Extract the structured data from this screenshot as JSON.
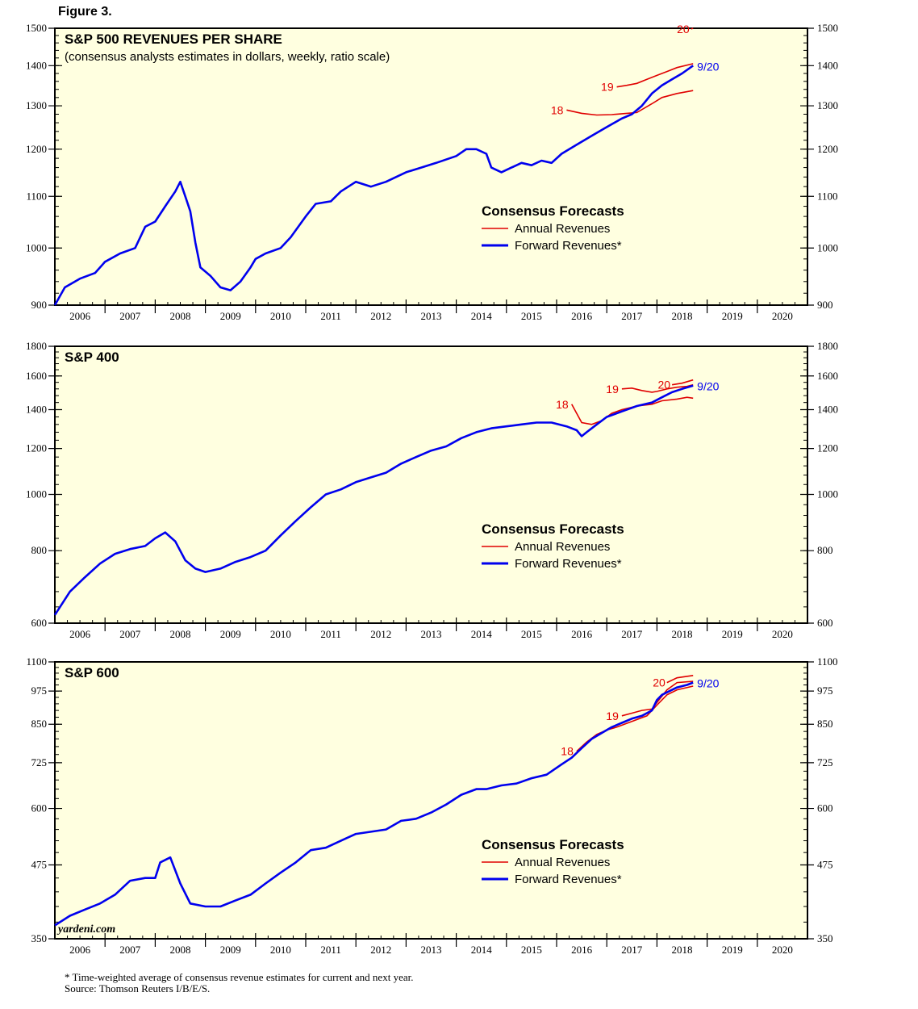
{
  "figure_title": "Figure 3.",
  "footnote": {
    "line1": "* Time-weighted average of consensus revenue estimates for current and next year.",
    "line2": "Source: Thomson Reuters I/B/E/S."
  },
  "watermark": "yardeni.com",
  "colors": {
    "background": "#ffffe0",
    "annual": "#e00000",
    "forward": "#0000ee"
  },
  "chart_data": [
    {
      "type": "line",
      "title": "S&P 500 REVENUES PER SHARE",
      "subtitle": "(consensus analysts estimates in dollars, weekly, ratio scale)",
      "scale": "log",
      "ylim": [
        900,
        1500
      ],
      "yticks": [
        900,
        1000,
        1100,
        1200,
        1300,
        1400,
        1500
      ],
      "x_categories": [
        "2006",
        "2007",
        "2008",
        "2009",
        "2010",
        "2011",
        "2012",
        "2013",
        "2014",
        "2015",
        "2016",
        "2017",
        "2018",
        "2019",
        "2020"
      ],
      "xlim": [
        2006.0,
        2021.0
      ],
      "legend": {
        "title": "Consensus Forecasts",
        "annual": "Annual Revenues",
        "forward": "Forward Revenues*"
      },
      "annotations": {
        "y18": "18",
        "y19": "19",
        "y20": "20",
        "date": "9/20"
      },
      "forward": {
        "x": [
          2006.0,
          2006.2,
          2006.5,
          2006.8,
          2007.0,
          2007.3,
          2007.6,
          2007.8,
          2008.0,
          2008.2,
          2008.4,
          2008.5,
          2008.6,
          2008.7,
          2008.8,
          2008.9,
          2009.1,
          2009.3,
          2009.5,
          2009.7,
          2009.9,
          2010.0,
          2010.2,
          2010.5,
          2010.7,
          2011.0,
          2011.2,
          2011.5,
          2011.7,
          2012.0,
          2012.3,
          2012.6,
          2013.0,
          2013.3,
          2013.6,
          2014.0,
          2014.2,
          2014.4,
          2014.6,
          2014.7,
          2014.9,
          2015.1,
          2015.3,
          2015.5,
          2015.7,
          2015.9,
          2016.1,
          2016.4,
          2016.7,
          2017.0,
          2017.3,
          2017.5,
          2017.7,
          2017.9,
          2018.1,
          2018.3,
          2018.5,
          2018.72
        ],
        "y": [
          900,
          930,
          945,
          955,
          975,
          990,
          1000,
          1040,
          1050,
          1080,
          1110,
          1130,
          1100,
          1070,
          1010,
          965,
          950,
          930,
          925,
          940,
          965,
          980,
          990,
          1000,
          1020,
          1060,
          1085,
          1090,
          1110,
          1130,
          1120,
          1130,
          1150,
          1160,
          1170,
          1185,
          1200,
          1200,
          1190,
          1160,
          1150,
          1160,
          1170,
          1165,
          1175,
          1170,
          1190,
          1210,
          1230,
          1250,
          1270,
          1280,
          1300,
          1330,
          1350,
          1365,
          1380,
          1400
        ]
      },
      "annual": [
        {
          "label": "18",
          "x": [
            2016.2,
            2016.5,
            2016.8,
            2017.1,
            2017.4,
            2017.6,
            2017.9,
            2018.1,
            2018.4,
            2018.72
          ],
          "y": [
            1290,
            1282,
            1278,
            1279,
            1282,
            1284,
            1305,
            1320,
            1330,
            1337
          ]
        },
        {
          "label": "19",
          "x": [
            2017.2,
            2017.4,
            2017.6,
            2017.8,
            2018.0,
            2018.2,
            2018.4,
            2018.72
          ],
          "y": [
            1346,
            1350,
            1355,
            1365,
            1375,
            1385,
            1395,
            1405
          ]
        },
        {
          "label": "20",
          "x": [
            2018.68,
            2018.72
          ],
          "y": [
            1498,
            1500
          ]
        }
      ]
    },
    {
      "type": "line",
      "title": "S&P 400",
      "scale": "log",
      "ylim": [
        600,
        1800
      ],
      "yticks": [
        600,
        800,
        1000,
        1200,
        1400,
        1600,
        1800
      ],
      "x_categories": [
        "2006",
        "2007",
        "2008",
        "2009",
        "2010",
        "2011",
        "2012",
        "2013",
        "2014",
        "2015",
        "2016",
        "2017",
        "2018",
        "2019",
        "2020"
      ],
      "xlim": [
        2006.0,
        2021.0
      ],
      "legend": {
        "title": "Consensus Forecasts",
        "annual": "Annual Revenues",
        "forward": "Forward Revenues*"
      },
      "annotations": {
        "y18": "18",
        "y19": "19",
        "y20": "20",
        "date": "9/20"
      },
      "forward": {
        "x": [
          2006.0,
          2006.3,
          2006.6,
          2006.9,
          2007.2,
          2007.5,
          2007.8,
          2008.0,
          2008.2,
          2008.4,
          2008.6,
          2008.8,
          2009.0,
          2009.3,
          2009.6,
          2009.9,
          2010.2,
          2010.5,
          2010.8,
          2011.1,
          2011.4,
          2011.7,
          2012.0,
          2012.3,
          2012.6,
          2012.9,
          2013.2,
          2013.5,
          2013.8,
          2014.1,
          2014.4,
          2014.7,
          2015.0,
          2015.3,
          2015.6,
          2015.9,
          2016.2,
          2016.4,
          2016.5,
          2016.6,
          2016.8,
          2017.0,
          2017.3,
          2017.6,
          2017.9,
          2018.1,
          2018.3,
          2018.5,
          2018.72
        ],
        "y": [
          620,
          680,
          720,
          760,
          790,
          805,
          815,
          840,
          860,
          830,
          770,
          745,
          735,
          745,
          765,
          780,
          800,
          850,
          900,
          950,
          1000,
          1020,
          1050,
          1070,
          1090,
          1130,
          1160,
          1190,
          1210,
          1250,
          1280,
          1300,
          1310,
          1320,
          1330,
          1330,
          1310,
          1290,
          1260,
          1280,
          1320,
          1360,
          1390,
          1420,
          1440,
          1470,
          1500,
          1520,
          1540
        ]
      },
      "annual": [
        {
          "label": "18",
          "x": [
            2016.3,
            2016.5,
            2016.7,
            2016.9,
            2017.1,
            2017.3,
            2017.6,
            2017.9,
            2018.1,
            2018.4,
            2018.6,
            2018.72
          ],
          "y": [
            1430,
            1330,
            1320,
            1340,
            1380,
            1400,
            1420,
            1430,
            1450,
            1460,
            1470,
            1465
          ]
        },
        {
          "label": "19",
          "x": [
            2017.3,
            2017.5,
            2017.7,
            2017.9,
            2018.0,
            2018.2,
            2018.4,
            2018.6,
            2018.72
          ],
          "y": [
            1520,
            1525,
            1510,
            1500,
            1505,
            1520,
            1530,
            1535,
            1545
          ]
        },
        {
          "label": "20",
          "x": [
            2018.3,
            2018.5,
            2018.72
          ],
          "y": [
            1545,
            1555,
            1575
          ]
        }
      ]
    },
    {
      "type": "line",
      "title": "S&P 600",
      "scale": "log",
      "ylim": [
        350,
        1100
      ],
      "yticks": [
        350,
        475,
        600,
        725,
        850,
        975,
        1100
      ],
      "x_categories": [
        "2006",
        "2007",
        "2008",
        "2009",
        "2010",
        "2011",
        "2012",
        "2013",
        "2014",
        "2015",
        "2016",
        "2017",
        "2018",
        "2019",
        "2020"
      ],
      "xlim": [
        2006.0,
        2021.0
      ],
      "legend": {
        "title": "Consensus Forecasts",
        "annual": "Annual Revenues",
        "forward": "Forward Revenues*"
      },
      "annotations": {
        "y18": "18",
        "y19": "19",
        "y20": "20",
        "date": "9/20"
      },
      "forward": {
        "x": [
          2006.0,
          2006.3,
          2006.6,
          2006.9,
          2007.2,
          2007.5,
          2007.8,
          2008.0,
          2008.1,
          2008.3,
          2008.5,
          2008.7,
          2009.0,
          2009.3,
          2009.6,
          2009.9,
          2010.2,
          2010.5,
          2010.8,
          2011.1,
          2011.4,
          2011.6,
          2011.8,
          2012.0,
          2012.3,
          2012.6,
          2012.9,
          2013.2,
          2013.5,
          2013.8,
          2014.1,
          2014.4,
          2014.6,
          2014.9,
          2015.2,
          2015.5,
          2015.8,
          2016.1,
          2016.3,
          2016.5,
          2016.7,
          2016.9,
          2017.1,
          2017.3,
          2017.5,
          2017.7,
          2017.9,
          2018.0,
          2018.1,
          2018.2,
          2018.4,
          2018.6,
          2018.72
        ],
        "y": [
          370,
          385,
          395,
          405,
          420,
          445,
          450,
          450,
          480,
          490,
          440,
          405,
          400,
          400,
          410,
          420,
          440,
          460,
          480,
          505,
          510,
          520,
          530,
          540,
          545,
          550,
          570,
          575,
          590,
          610,
          635,
          650,
          650,
          660,
          665,
          680,
          690,
          720,
          740,
          770,
          800,
          820,
          840,
          855,
          870,
          880,
          900,
          940,
          960,
          970,
          990,
          1000,
          1010
        ]
      },
      "annual": [
        {
          "label": "18",
          "x": [
            2016.4,
            2016.6,
            2016.8,
            2017.0,
            2017.2,
            2017.5,
            2017.8,
            2018.0,
            2018.2,
            2018.4,
            2018.72
          ],
          "y": [
            760,
            790,
            815,
            830,
            840,
            860,
            880,
            920,
            960,
            980,
            995
          ]
        },
        {
          "label": "19",
          "x": [
            2017.3,
            2017.5,
            2017.7,
            2017.9,
            2018.0,
            2018.2,
            2018.4,
            2018.72
          ],
          "y": [
            880,
            890,
            900,
            905,
            930,
            980,
            1010,
            1015
          ]
        },
        {
          "label": "20",
          "x": [
            2018.2,
            2018.4,
            2018.72
          ],
          "y": [
            1010,
            1030,
            1040
          ]
        }
      ]
    }
  ]
}
